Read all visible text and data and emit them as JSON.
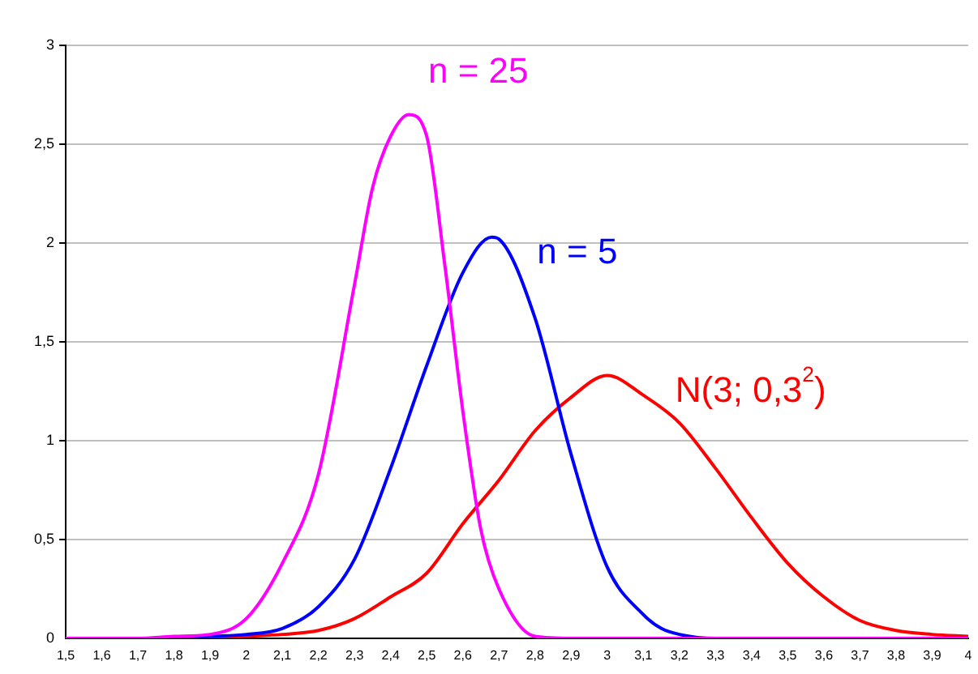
{
  "chart_data": {
    "type": "line",
    "xlim": [
      1.5,
      4
    ],
    "ylim": [
      0,
      3
    ],
    "xticks": [
      {
        "value": 1.5,
        "label": "1,5"
      },
      {
        "value": 1.6,
        "label": "1,6"
      },
      {
        "value": 1.7,
        "label": "1,7"
      },
      {
        "value": 1.8,
        "label": "1,8"
      },
      {
        "value": 1.9,
        "label": "1,9"
      },
      2,
      {
        "value": 2.1,
        "label": "2,1"
      },
      {
        "value": 2.2,
        "label": "2,2"
      },
      {
        "value": 2.3,
        "label": "2,3"
      },
      {
        "value": 2.4,
        "label": "2,4"
      },
      {
        "value": 2.5,
        "label": "2,5"
      },
      {
        "value": 2.6,
        "label": "2,6"
      },
      {
        "value": 2.7,
        "label": "2,7"
      },
      {
        "value": 2.8,
        "label": "2,8"
      },
      {
        "value": 2.9,
        "label": "2,9"
      },
      3,
      {
        "value": 3.1,
        "label": "3,1"
      },
      {
        "value": 3.2,
        "label": "3,2"
      },
      {
        "value": 3.3,
        "label": "3,3"
      },
      {
        "value": 3.4,
        "label": "3,4"
      },
      {
        "value": 3.5,
        "label": "3,5"
      },
      {
        "value": 3.6,
        "label": "3,6"
      },
      {
        "value": 3.7,
        "label": "3,7"
      },
      {
        "value": 3.8,
        "label": "3,8"
      },
      {
        "value": 3.9,
        "label": "3,9"
      },
      4
    ],
    "yticks": [
      0,
      {
        "value": 0.5,
        "label": "0,5"
      },
      1,
      {
        "value": 1.5,
        "label": "1,5"
      },
      2,
      {
        "value": 2.5,
        "label": "2,5"
      },
      3
    ],
    "grid": "y",
    "marker": "none",
    "line_style": "solid",
    "series": [
      {
        "name": "n = 25",
        "color": "#ff00ff",
        "x": [
          1.5,
          1.6,
          1.7,
          1.8,
          1.9,
          2.0,
          2.1,
          2.2,
          2.3,
          2.35,
          2.4,
          2.45,
          2.5,
          2.55,
          2.6,
          2.65,
          2.7,
          2.8,
          2.9,
          3.0,
          3.5,
          4.0
        ],
        "values": [
          0,
          0,
          0,
          0.01,
          0.02,
          0.1,
          0.38,
          0.83,
          1.79,
          2.28,
          2.54,
          2.65,
          2.54,
          1.89,
          1.15,
          0.55,
          0.25,
          0.01,
          0,
          0,
          0,
          0
        ]
      },
      {
        "name": "n = 5",
        "color": "#0000ff",
        "x": [
          1.7,
          1.8,
          1.9,
          2.0,
          2.1,
          2.2,
          2.3,
          2.4,
          2.5,
          2.6,
          2.68,
          2.7,
          2.8,
          2.9,
          3.0,
          3.1,
          3.15,
          3.2,
          3.3,
          3.5,
          4.0
        ],
        "values": [
          0,
          0,
          0.01,
          0.02,
          0.05,
          0.16,
          0.4,
          0.86,
          1.38,
          1.85,
          2.03,
          2.02,
          1.62,
          0.93,
          0.36,
          0.12,
          0.05,
          0.02,
          0,
          0,
          0
        ]
      },
      {
        "name": "N(3; 0,3$^{2}$)",
        "color": "#ff0000",
        "x": [
          1.8,
          1.9,
          2.0,
          2.1,
          2.2,
          2.3,
          2.4,
          2.5,
          2.6,
          2.7,
          2.8,
          2.9,
          3.0,
          3.1,
          3.2,
          3.3,
          3.4,
          3.5,
          3.6,
          3.7,
          3.8,
          3.9,
          4.0
        ],
        "values": [
          0,
          0,
          0.01,
          0.02,
          0.04,
          0.1,
          0.21,
          0.33,
          0.58,
          0.8,
          1.05,
          1.22,
          1.33,
          1.23,
          1.09,
          0.86,
          0.61,
          0.38,
          0.21,
          0.09,
          0.04,
          0.02,
          0.01
        ]
      }
    ]
  }
}
